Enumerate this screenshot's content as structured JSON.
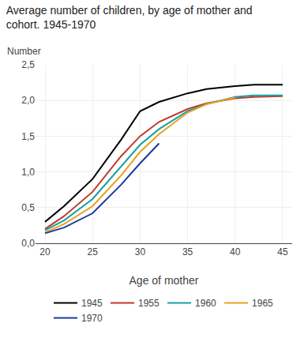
{
  "chart_data": {
    "type": "line",
    "title": "Average number of children, by age of mother and\ncohort. 1945-1970",
    "xlabel": "Age of mother",
    "ylabel": "Number",
    "xlim": [
      19,
      46
    ],
    "ylim": [
      0.0,
      2.5
    ],
    "xticks": [
      20,
      25,
      30,
      35,
      40,
      45
    ],
    "yticks": [
      {
        "value": 0.0,
        "label": "0,0"
      },
      {
        "value": 0.5,
        "label": "0,5"
      },
      {
        "value": 1.0,
        "label": "1,0"
      },
      {
        "value": 1.5,
        "label": "1,5"
      },
      {
        "value": 2.0,
        "label": "2,0"
      },
      {
        "value": 2.5,
        "label": "2,5"
      }
    ],
    "grid": true,
    "legend": "bottom",
    "series": [
      {
        "name": "1945",
        "color": "#000000",
        "x": [
          20,
          22,
          25,
          28,
          30,
          32,
          35,
          37,
          40,
          42,
          45
        ],
        "values": [
          0.3,
          0.52,
          0.9,
          1.45,
          1.85,
          1.98,
          2.1,
          2.16,
          2.2,
          2.22,
          2.22
        ]
      },
      {
        "name": "1955",
        "color": "#c0392b",
        "x": [
          20,
          22,
          25,
          28,
          30,
          32,
          35,
          37,
          40,
          42,
          45
        ],
        "values": [
          0.2,
          0.38,
          0.72,
          1.22,
          1.5,
          1.7,
          1.88,
          1.96,
          2.03,
          2.05,
          2.06
        ]
      },
      {
        "name": "1960",
        "color": "#16a0a0",
        "x": [
          20,
          22,
          25,
          28,
          30,
          32,
          35,
          37,
          40,
          42,
          45
        ],
        "values": [
          0.18,
          0.32,
          0.62,
          1.08,
          1.38,
          1.6,
          1.85,
          1.95,
          2.05,
          2.07,
          2.07
        ]
      },
      {
        "name": "1965",
        "color": "#e8a020",
        "x": [
          20,
          22,
          25,
          28,
          30,
          32,
          35,
          37,
          40
        ],
        "values": [
          0.15,
          0.27,
          0.52,
          0.95,
          1.28,
          1.53,
          1.83,
          1.95,
          2.04
        ]
      },
      {
        "name": "1970",
        "color": "#1a3a9c",
        "x": [
          20,
          22,
          25,
          28,
          30,
          32
        ],
        "values": [
          0.14,
          0.22,
          0.42,
          0.82,
          1.12,
          1.4
        ]
      }
    ]
  }
}
